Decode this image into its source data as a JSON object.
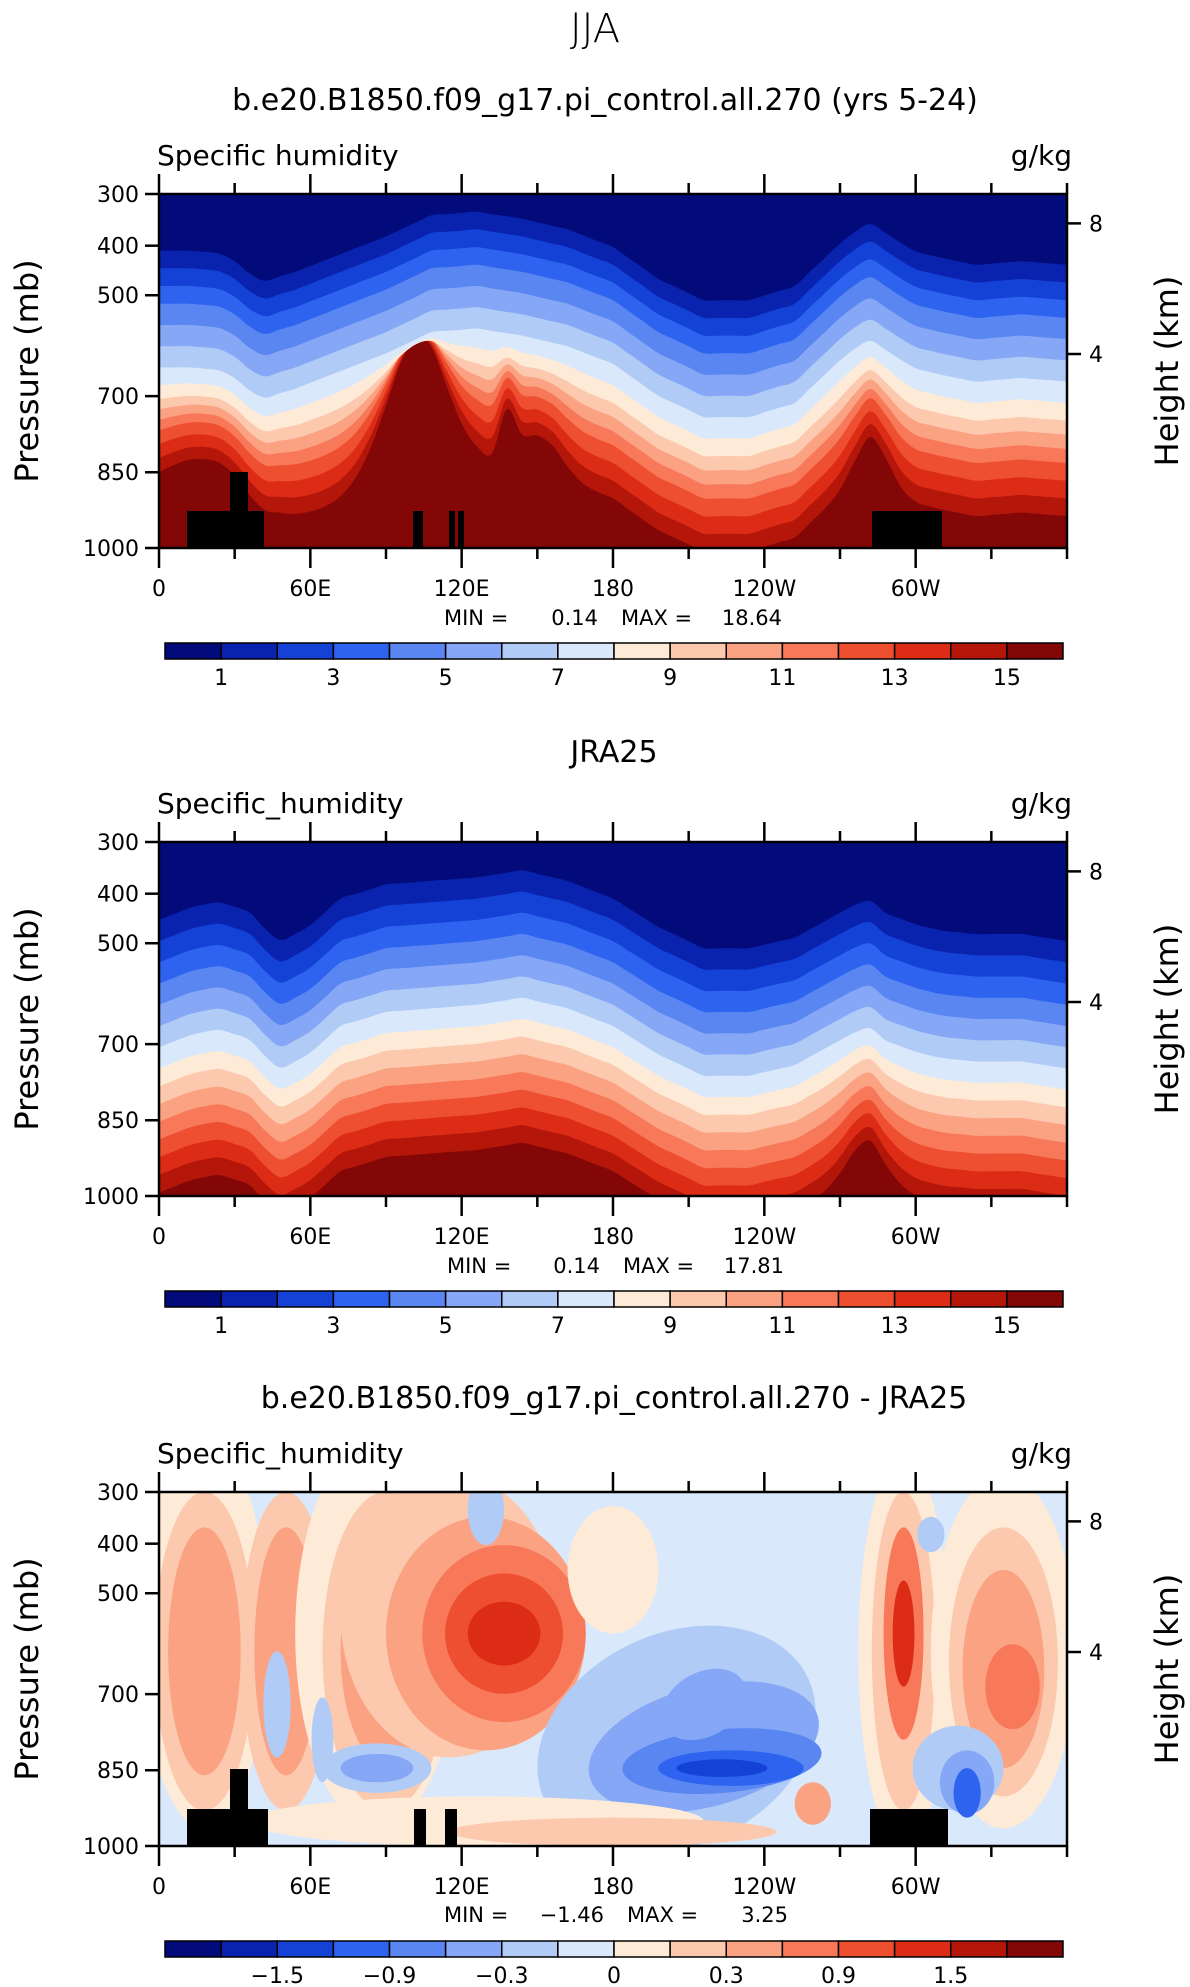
{
  "page_title": "JJA",
  "chart_data": [
    {
      "type": "heatmap",
      "title": "b.e20.B1850.f09_g17.pi_control.all.270 (yrs 5-24)",
      "left_label": "Specific humidity",
      "right_label": "g/kg",
      "ylabel": "Pressure (mb)",
      "ylabel_right": "Height (km)",
      "y_ticks": [
        "300",
        "400",
        "500",
        "700",
        "850",
        "1000"
      ],
      "y_right_ticks": [
        "8",
        "4"
      ],
      "x_ticks": [
        "0",
        "60E",
        "120E",
        "180",
        "120W",
        "60W"
      ],
      "stats": {
        "min_label": "MIN =",
        "min": "0.14",
        "max_label": "MAX =",
        "max": "18.64"
      },
      "colorbar_labels": [
        "1",
        "3",
        "5",
        "7",
        "9",
        "11",
        "13",
        "15"
      ],
      "colors": [
        "#030b7b",
        "#0a23ae",
        "#1441d6",
        "#2d63ee",
        "#5a86f2",
        "#85a7f5",
        "#b1cbf7",
        "#d9e8fb",
        "#fdebd8",
        "#fcc9ae",
        "#fba283",
        "#f8785a",
        "#ee4f30",
        "#dc2c16",
        "#b4160a",
        "#830706"
      ]
    },
    {
      "type": "heatmap",
      "title": "JRA25",
      "left_label": "Specific_humidity",
      "right_label": "g/kg",
      "ylabel": "Pressure (mb)",
      "ylabel_right": "Height (km)",
      "y_ticks": [
        "300",
        "400",
        "500",
        "700",
        "850",
        "1000"
      ],
      "y_right_ticks": [
        "8",
        "4"
      ],
      "x_ticks": [
        "0",
        "60E",
        "120E",
        "180",
        "120W",
        "60W"
      ],
      "stats": {
        "min_label": "MIN =",
        "min": "0.14",
        "max_label": "MAX =",
        "max": "17.81"
      },
      "colorbar_labels": [
        "1",
        "3",
        "5",
        "7",
        "9",
        "11",
        "13",
        "15"
      ],
      "colors": [
        "#030b7b",
        "#0a23ae",
        "#1441d6",
        "#2d63ee",
        "#5a86f2",
        "#85a7f5",
        "#b1cbf7",
        "#d9e8fb",
        "#fdebd8",
        "#fcc9ae",
        "#fba283",
        "#f8785a",
        "#ee4f30",
        "#dc2c16",
        "#b4160a",
        "#830706"
      ]
    },
    {
      "type": "heatmap",
      "title": "b.e20.B1850.f09_g17.pi_control.all.270 - JRA25",
      "left_label": "Specific_humidity",
      "right_label": "g/kg",
      "ylabel": "Pressure (mb)",
      "ylabel_right": "Height (km)",
      "y_ticks": [
        "300",
        "400",
        "500",
        "700",
        "850",
        "1000"
      ],
      "y_right_ticks": [
        "8",
        "4"
      ],
      "x_ticks": [
        "0",
        "60E",
        "120E",
        "180",
        "120W",
        "60W"
      ],
      "stats": {
        "min_label": "MIN =",
        "min": "−1.46",
        "max_label": "MAX =",
        "max": "3.25"
      },
      "colorbar_labels": [
        "−1.5",
        "−0.9",
        "−0.3",
        "0",
        "0.3",
        "0.9",
        "1.5"
      ],
      "colors": [
        "#030b7b",
        "#0a23ae",
        "#1441d6",
        "#2d63ee",
        "#5a86f2",
        "#85a7f5",
        "#b1cbf7",
        "#d9e8fb",
        "#fdebd8",
        "#fcc9ae",
        "#fba283",
        "#f8785a",
        "#ee4f30",
        "#dc2c16",
        "#b4160a",
        "#830706"
      ]
    }
  ]
}
